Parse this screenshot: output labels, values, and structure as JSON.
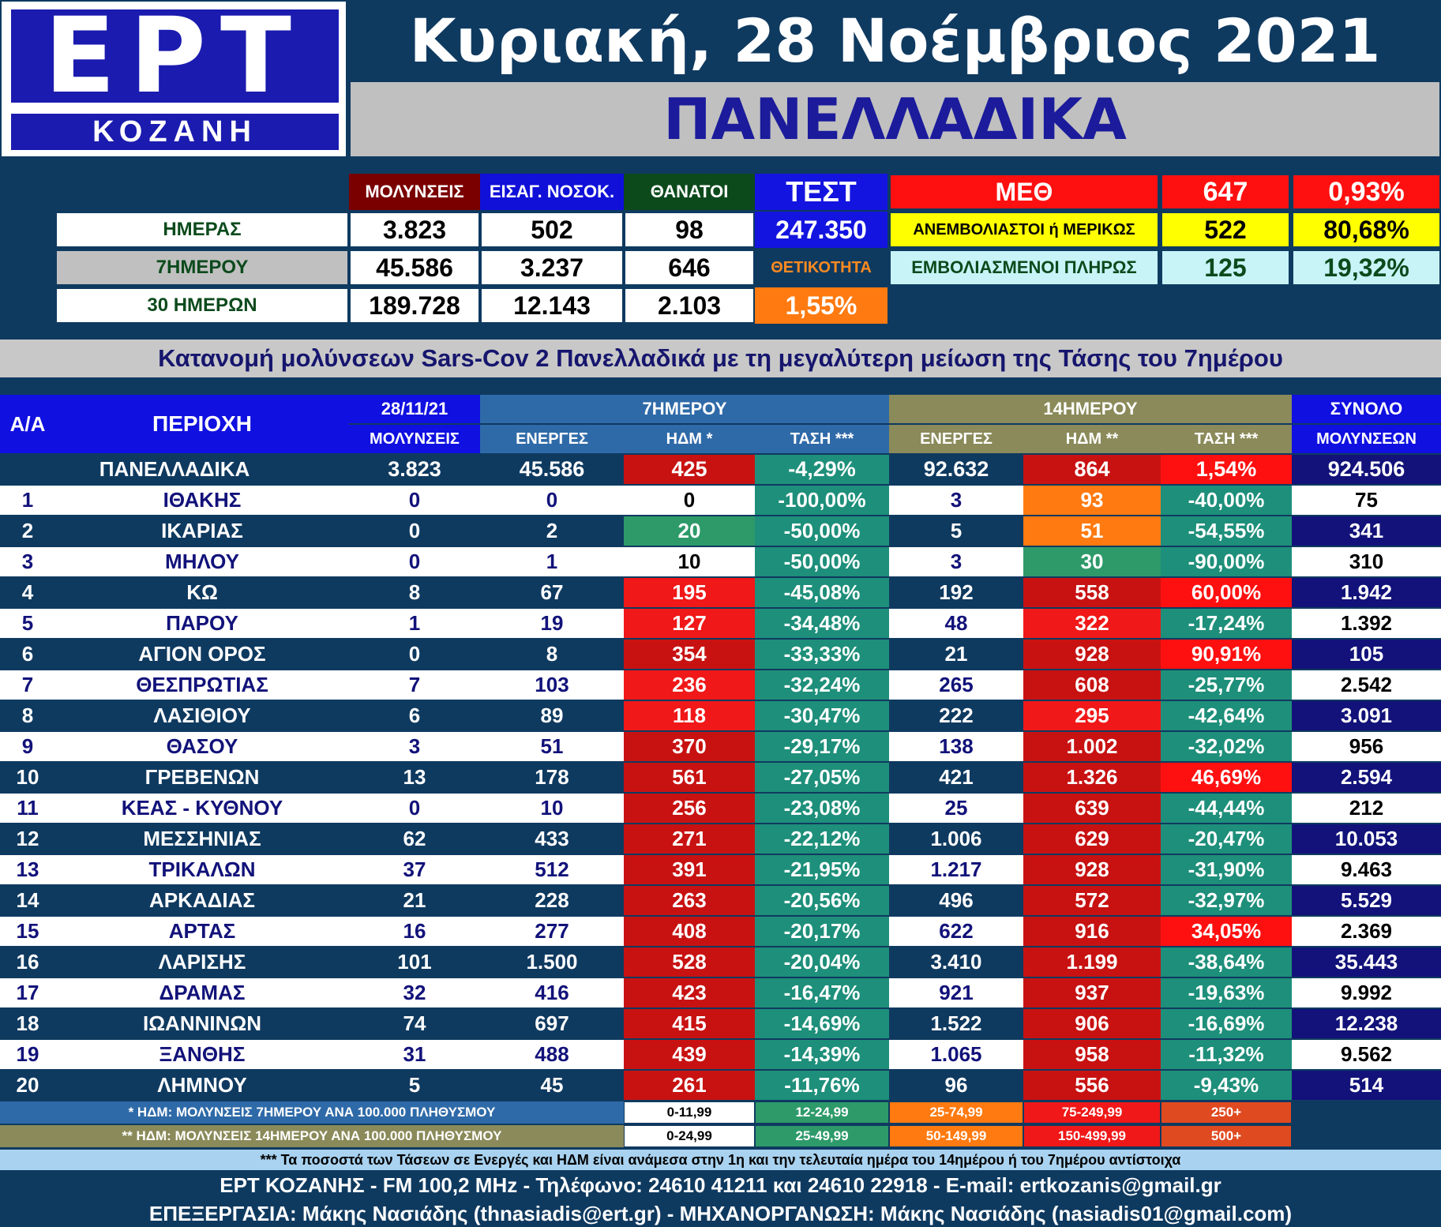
{
  "logo": {
    "name": "ΕΡΤ",
    "region": "ΚΟΖΑΝΗ"
  },
  "date": "Κυριακή, 28 Νοέμβριος 2021",
  "scope": "ΠΑΝΕΛΛΑΔΙΚΑ",
  "summary": {
    "headers": [
      "ΜΟΛΥΝΣΕΙΣ",
      "ΕΙΣΑΓ. ΝΟΣΟΚ.",
      "ΘΑΝΑΤΟΙ",
      "ΤΕΣΤ"
    ],
    "rows": [
      {
        "label": "ΗΜΕΡΑΣ",
        "values": [
          "3.823",
          "502",
          "98",
          "247.350"
        ]
      },
      {
        "label": "7ΗΜΕΡΟΥ",
        "values": [
          "45.586",
          "3.237",
          "646",
          "ΘΕΤΙΚΟΤΗΤΑ"
        ]
      },
      {
        "label": "30 ΗΜΕΡΩΝ",
        "values": [
          "189.728",
          "12.143",
          "2.103",
          "1,55%"
        ]
      }
    ],
    "icu": [
      {
        "label": "ΜΕΘ",
        "count": "647",
        "pct": "0,93%"
      },
      {
        "label": "ΑΝΕΜΒΟΛΙΑΣΤΟΙ ή ΜΕΡΙΚΩΣ",
        "count": "522",
        "pct": "80,68%"
      },
      {
        "label": "ΕΜΒΟΛΙΑΣΜΕΝΟΙ ΠΛΗΡΩΣ",
        "count": "125",
        "pct": "19,32%"
      }
    ]
  },
  "subtitle": "Κατανομή μολύνσεων Sars-Cov 2 Πανελλαδικά με τη μεγαλύτερη μείωση της Τάσης του 7ημέρου",
  "table": {
    "h_aa": "Α/Α",
    "h_region": "ΠΕΡΙΟΧΗ",
    "h_date": "28/11/21",
    "h_date_sub": "ΜΟΛΥΝΣΕΙΣ",
    "h_7": "7ΗΜΕΡΟΥ",
    "h_14": "14ΗΜΕΡΟΥ",
    "h_total": "ΣΥΝΟΛΟ",
    "h_total_sub": "ΜΟΛΥΝΣΕΩΝ",
    "sub7": [
      "ΕΝΕΡΓΕΣ",
      "ΗΔΜ *",
      "ΤΑΣΗ ***"
    ],
    "sub14": [
      "ΕΝΕΡΓΕΣ",
      "ΗΔΜ **",
      "ΤΑΣΗ ***"
    ],
    "national": {
      "name": "ΠΑΝΕΛΛΑΔΙΚΑ",
      "cases": "3.823",
      "a7": "45.586",
      "h7": "425",
      "t7": "-4,29%",
      "a14": "92.632",
      "h14": "864",
      "t14": "1,54%",
      "total": "924.506"
    },
    "rows": [
      {
        "n": "1",
        "name": "ΙΘΑΚΗΣ",
        "cases": "0",
        "a7": "0",
        "h7": "0",
        "t7": "-100,00%",
        "a14": "3",
        "h14": "93",
        "t14": "-40,00%",
        "total": "75"
      },
      {
        "n": "2",
        "name": "ΙΚΑΡΙΑΣ",
        "cases": "0",
        "a7": "2",
        "h7": "20",
        "t7": "-50,00%",
        "a14": "5",
        "h14": "51",
        "t14": "-54,55%",
        "total": "341"
      },
      {
        "n": "3",
        "name": "ΜΗΛΟΥ",
        "cases": "0",
        "a7": "1",
        "h7": "10",
        "t7": "-50,00%",
        "a14": "3",
        "h14": "30",
        "t14": "-90,00%",
        "total": "310"
      },
      {
        "n": "4",
        "name": "ΚΩ",
        "cases": "8",
        "a7": "67",
        "h7": "195",
        "t7": "-45,08%",
        "a14": "192",
        "h14": "558",
        "t14": "60,00%",
        "total": "1.942"
      },
      {
        "n": "5",
        "name": "ΠΑΡΟΥ",
        "cases": "1",
        "a7": "19",
        "h7": "127",
        "t7": "-34,48%",
        "a14": "48",
        "h14": "322",
        "t14": "-17,24%",
        "total": "1.392"
      },
      {
        "n": "6",
        "name": "ΑΓΙΟΝ ΟΡΟΣ",
        "cases": "0",
        "a7": "8",
        "h7": "354",
        "t7": "-33,33%",
        "a14": "21",
        "h14": "928",
        "t14": "90,91%",
        "total": "105"
      },
      {
        "n": "7",
        "name": "ΘΕΣΠΡΩΤΙΑΣ",
        "cases": "7",
        "a7": "103",
        "h7": "236",
        "t7": "-32,24%",
        "a14": "265",
        "h14": "608",
        "t14": "-25,77%",
        "total": "2.542"
      },
      {
        "n": "8",
        "name": "ΛΑΣΙΘΙΟΥ",
        "cases": "6",
        "a7": "89",
        "h7": "118",
        "t7": "-30,47%",
        "a14": "222",
        "h14": "295",
        "t14": "-42,64%",
        "total": "3.091"
      },
      {
        "n": "9",
        "name": "ΘΑΣΟΥ",
        "cases": "3",
        "a7": "51",
        "h7": "370",
        "t7": "-29,17%",
        "a14": "138",
        "h14": "1.002",
        "t14": "-32,02%",
        "total": "956"
      },
      {
        "n": "10",
        "name": "ΓΡΕΒΕΝΩΝ",
        "cases": "13",
        "a7": "178",
        "h7": "561",
        "t7": "-27,05%",
        "a14": "421",
        "h14": "1.326",
        "t14": "46,69%",
        "total": "2.594"
      },
      {
        "n": "11",
        "name": "ΚΕΑΣ - ΚΥΘΝΟΥ",
        "cases": "0",
        "a7": "10",
        "h7": "256",
        "t7": "-23,08%",
        "a14": "25",
        "h14": "639",
        "t14": "-44,44%",
        "total": "212"
      },
      {
        "n": "12",
        "name": "ΜΕΣΣΗΝΙΑΣ",
        "cases": "62",
        "a7": "433",
        "h7": "271",
        "t7": "-22,12%",
        "a14": "1.006",
        "h14": "629",
        "t14": "-20,47%",
        "total": "10.053"
      },
      {
        "n": "13",
        "name": "ΤΡΙΚΑΛΩΝ",
        "cases": "37",
        "a7": "512",
        "h7": "391",
        "t7": "-21,95%",
        "a14": "1.217",
        "h14": "928",
        "t14": "-31,90%",
        "total": "9.463"
      },
      {
        "n": "14",
        "name": "ΑΡΚΑΔΙΑΣ",
        "cases": "21",
        "a7": "228",
        "h7": "263",
        "t7": "-20,56%",
        "a14": "496",
        "h14": "572",
        "t14": "-32,97%",
        "total": "5.529"
      },
      {
        "n": "15",
        "name": "ΑΡΤΑΣ",
        "cases": "16",
        "a7": "277",
        "h7": "408",
        "t7": "-20,17%",
        "a14": "622",
        "h14": "916",
        "t14": "34,05%",
        "total": "2.369"
      },
      {
        "n": "16",
        "name": "ΛΑΡΙΣΗΣ",
        "cases": "101",
        "a7": "1.500",
        "h7": "528",
        "t7": "-20,04%",
        "a14": "3.410",
        "h14": "1.199",
        "t14": "-38,64%",
        "total": "35.443"
      },
      {
        "n": "17",
        "name": "ΔΡΑΜΑΣ",
        "cases": "32",
        "a7": "416",
        "h7": "423",
        "t7": "-16,47%",
        "a14": "921",
        "h14": "937",
        "t14": "-19,63%",
        "total": "9.992"
      },
      {
        "n": "18",
        "name": "ΙΩΑΝΝΙΝΩΝ",
        "cases": "74",
        "a7": "697",
        "h7": "415",
        "t7": "-14,69%",
        "a14": "1.522",
        "h14": "906",
        "t14": "-16,69%",
        "total": "12.238"
      },
      {
        "n": "19",
        "name": "ΞΑΝΘΗΣ",
        "cases": "31",
        "a7": "488",
        "h7": "439",
        "t7": "-14,39%",
        "a14": "1.065",
        "h14": "958",
        "t14": "-11,32%",
        "total": "9.562"
      },
      {
        "n": "20",
        "name": "ΛΗΜΝΟΥ",
        "cases": "5",
        "a7": "45",
        "h7": "261",
        "t7": "-11,76%",
        "a14": "96",
        "h14": "556",
        "t14": "-9,43%",
        "total": "514"
      }
    ]
  },
  "legend": {
    "l1": "* ΗΔΜ: ΜΟΛΥΝΣΕΙΣ 7ΗΜΕΡΟΥ ΑΝΑ 100.000 ΠΛΗΘΥΣΜΟΥ",
    "l1_ranges": [
      "0-11,99",
      "12-24,99",
      "25-74,99",
      "75-249,99",
      "250+"
    ],
    "l2": "** ΗΔΜ: ΜΟΛΥΝΣΕΙΣ 14ΗΜΕΡΟΥ ΑΝΑ 100.000 ΠΛΗΘΥΣΜΟΥ",
    "l2_ranges": [
      "0-24,99",
      "25-49,99",
      "50-149,99",
      "150-499,99",
      "500+"
    ]
  },
  "colors": {
    "white": "#ffffff",
    "green": "#2e9a6a",
    "orange": "#ff7a10",
    "red": "#f01818",
    "darkred": "#c81212",
    "brightred": "#ff1010",
    "teal": "#1e8f7a",
    "navy": "#12127a"
  },
  "footer": {
    "note": "*** Τα ποσοστά των Τάσεων σε Ενεργές και ΗΔΜ είναι ανάμεσα στην 1η και την τελευταία ημέρα του 14ημέρου ή του 7ημέρου αντίστοιχα",
    "contact": "ΕΡΤ ΚΟΖΑΝΗΣ - FM 100,2 MHz - Τηλέφωνο:  24610 41211 και 24610 22918 - E-mail: ertkozanis@gmail.gr",
    "credits": "ΕΠΕΞΕΡΓΑΣΙΑ: Μάκης Νασιάδης (thnasiadis@ert.gr) - ΜΗΧΑΝΟΡΓΑΝΩΣΗ: Μάκης Νασιάδης (nasiadis01@gmail.com)"
  }
}
